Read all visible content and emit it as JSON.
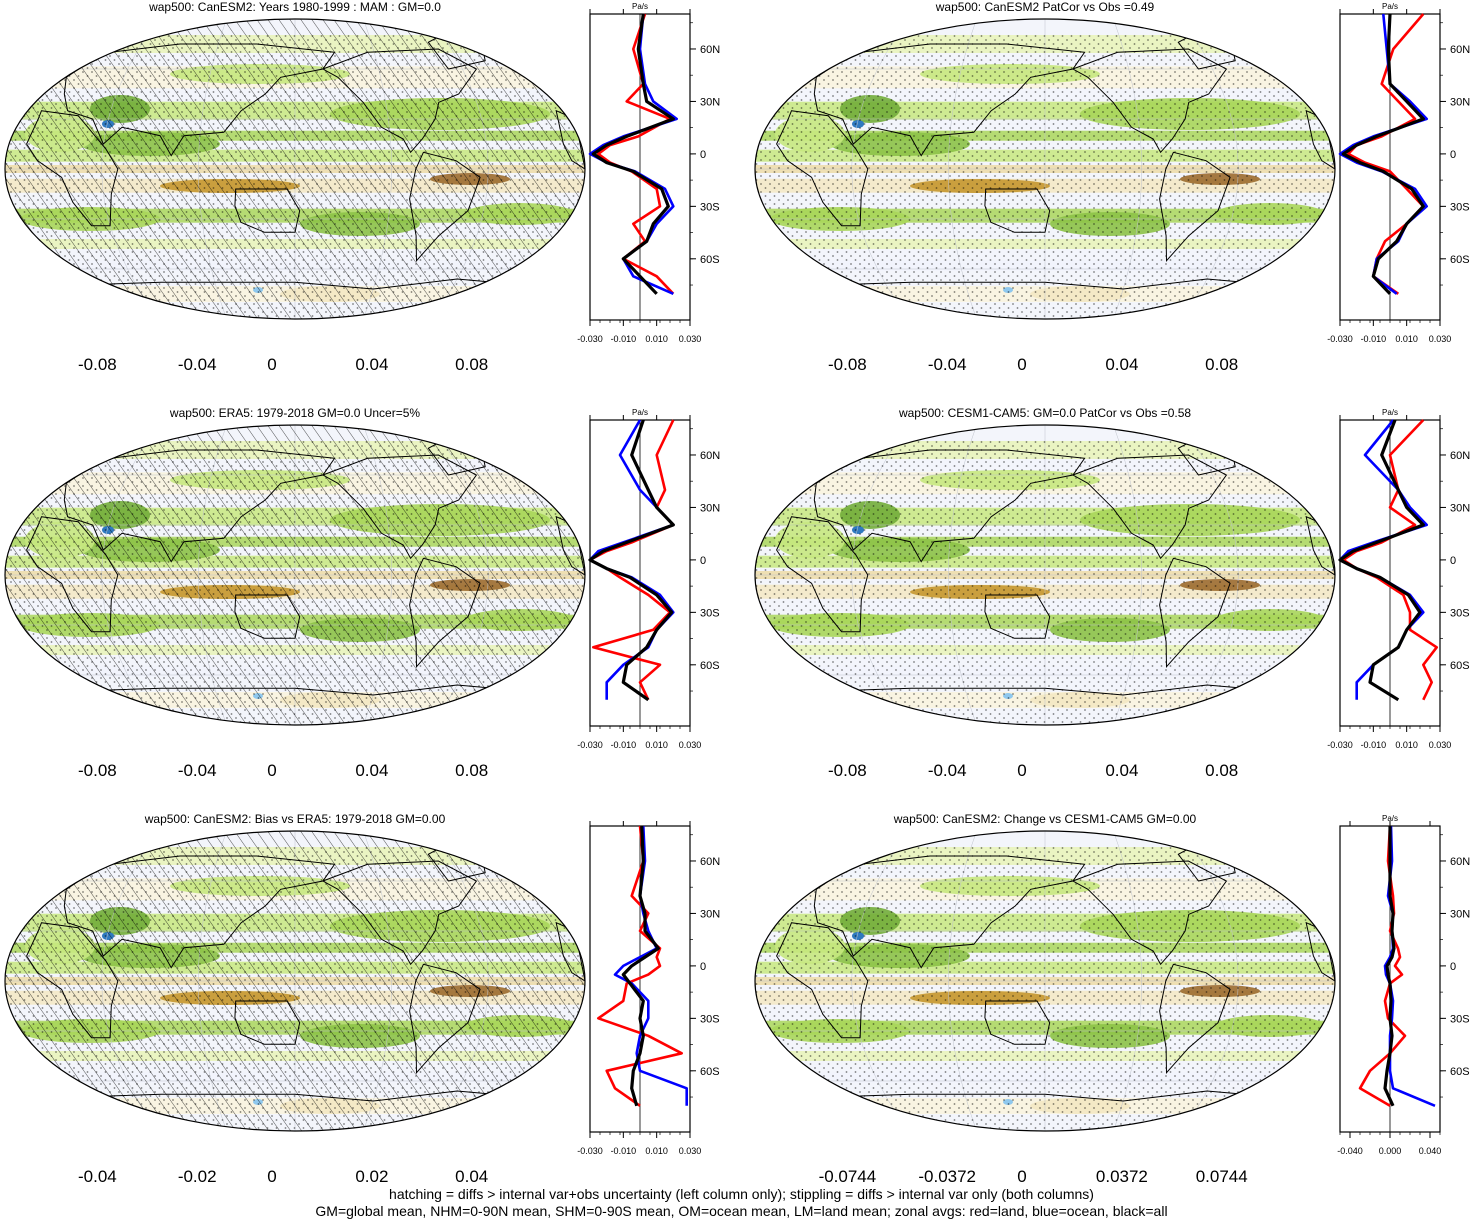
{
  "colors": {
    "palette": [
      "#543005",
      "#7a4a14",
      "#9c6b2d",
      "#c5972f",
      "#d8b150",
      "#e3c87e",
      "#ecdba6",
      "#f3e8c3",
      "#f9f3dd",
      "#ffffff",
      "#f1f3fb",
      "#e7f3b7",
      "#c7e87f",
      "#a9d65a",
      "#8cc247",
      "#72ad3a",
      "#589833",
      "#41812b",
      "#2e6e25",
      "#8fc8ee",
      "#2f79c0"
    ],
    "land": "#ff0000",
    "ocean": "#0000ff",
    "all": "#000000"
  },
  "panels": [
    {
      "title": "wap500: CanESM2: Years 1980-1999 : MAM : GM=0.0",
      "hatching": true,
      "profile": {
        "unit": "Pa/s",
        "xticks": [
          "-0.030",
          "-0.010",
          "0.010",
          "0.030"
        ],
        "yticks": [
          "60N",
          "30N",
          "0",
          "30S",
          "60S"
        ]
      },
      "colorbar": {
        "labels": [
          "-0.08",
          "-0.04",
          "0",
          "0.04",
          "0.08"
        ]
      }
    },
    {
      "title": "wap500: CanESM2 PatCor vs Obs =0.49",
      "hatching": false,
      "profile": {
        "unit": "Pa/s",
        "xticks": [
          "-0.030",
          "-0.010",
          "0.010",
          "0.030"
        ],
        "yticks": [
          "60N",
          "30N",
          "0",
          "30S",
          "60S"
        ]
      },
      "colorbar": {
        "labels": [
          "-0.08",
          "-0.04",
          "0",
          "0.04",
          "0.08"
        ]
      }
    },
    {
      "title": "wap500: ERA5: 1979-2018 GM=0.0 Uncer=5%",
      "hatching": true,
      "profile": {
        "unit": "Pa/s",
        "xticks": [
          "-0.030",
          "-0.010",
          "0.010",
          "0.030"
        ],
        "yticks": [
          "60N",
          "30N",
          "0",
          "30S",
          "60S"
        ]
      },
      "colorbar": {
        "labels": [
          "-0.08",
          "-0.04",
          "0",
          "0.04",
          "0.08"
        ]
      }
    },
    {
      "title": "wap500: CESM1-CAM5: GM=0.0 PatCor vs Obs =0.58",
      "hatching": false,
      "profile": {
        "unit": "Pa/s",
        "xticks": [
          "-0.030",
          "-0.010",
          "0.010",
          "0.030"
        ],
        "yticks": [
          "60N",
          "30N",
          "0",
          "30S",
          "60S"
        ]
      },
      "colorbar": {
        "labels": [
          "-0.08",
          "-0.04",
          "0",
          "0.04",
          "0.08"
        ]
      }
    },
    {
      "title": "wap500: CanESM2: Bias vs ERA5: 1979-2018 GM=0.00",
      "hatching": true,
      "profile": {
        "unit": "",
        "xticks": [
          "-0.030",
          "-0.010",
          "0.010",
          "0.030"
        ],
        "yticks": [
          "60N",
          "30N",
          "0",
          "30S",
          "60S"
        ]
      },
      "colorbar": {
        "labels": [
          "-0.04",
          "-0.02",
          "0",
          "0.02",
          "0.04"
        ]
      }
    },
    {
      "title": "wap500: CanESM2: Change vs CESM1-CAM5 GM=0.00",
      "hatching": false,
      "profile": {
        "unit": "Pa/s",
        "xticks": [
          "-0.040",
          "0.000",
          "0.040"
        ],
        "yticks": [
          "60N",
          "30N",
          "0",
          "30S",
          "60S"
        ]
      },
      "colorbar": {
        "labels": [
          "-0.0744",
          "-0.0372",
          "0",
          "0.0372",
          "0.0744"
        ]
      }
    }
  ],
  "footer": {
    "line1": "hatching = diffs > internal var+obs uncertainty (left column only); stippling = diffs > internal var only (both columns)",
    "line2": "GM=global mean, NHM=0-90N mean, SHM=0-90S mean, OM=ocean mean, LM=land mean; zonal avgs: red=land, blue=ocean, black=all"
  },
  "chart_data": [
    {
      "type": "heatmap",
      "title": "wap500: CanESM2: Years 1980-1999 : MAM : GM=0.0",
      "colorbar_range": [
        -0.1,
        0.1
      ],
      "profile": {
        "xlim": [
          -0.03,
          0.03
        ],
        "x_unit": "Pa/s",
        "lat": [
          80,
          60,
          40,
          30,
          20,
          10,
          5,
          0,
          -5,
          -10,
          -20,
          -30,
          -40,
          -50,
          -60,
          -70,
          -80
        ],
        "series": [
          {
            "name": "red=land",
            "values": [
              0.003,
              -0.004,
              0.002,
              -0.008,
              0.018,
              -0.001,
              -0.018,
              -0.025,
              -0.018,
              -0.005,
              0.01,
              0.012,
              -0.004,
              0.003,
              -0.01,
              0.01,
              0.02
            ]
          },
          {
            "name": "blue=ocean",
            "values": [
              0.002,
              0.0,
              0.003,
              0.008,
              0.022,
              -0.01,
              -0.022,
              -0.03,
              -0.02,
              -0.003,
              0.015,
              0.02,
              0.01,
              0.004,
              -0.01,
              -0.004,
              0.02
            ]
          },
          {
            "name": "black=all",
            "values": [
              0.002,
              -0.001,
              0.002,
              0.004,
              0.02,
              -0.008,
              -0.02,
              -0.028,
              -0.02,
              -0.004,
              0.013,
              0.017,
              0.008,
              0.004,
              -0.01,
              0.0,
              0.01
            ]
          }
        ]
      }
    },
    {
      "type": "heatmap",
      "title": "wap500: CanESM2 PatCor vs Obs =0.49",
      "colorbar_range": [
        -0.1,
        0.1
      ],
      "profile": {
        "xlim": [
          -0.03,
          0.03
        ],
        "x_unit": "Pa/s",
        "lat": [
          80,
          60,
          40,
          30,
          20,
          10,
          5,
          0,
          -5,
          -10,
          -20,
          -30,
          -40,
          -50,
          -60,
          -70,
          -80
        ],
        "series": [
          {
            "name": "red=land",
            "values": [
              0.02,
              0.002,
              -0.005,
              0.005,
              0.015,
              -0.005,
              -0.02,
              -0.025,
              -0.015,
              0.0,
              0.01,
              0.02,
              0.01,
              -0.003,
              -0.008,
              -0.01,
              0.005
            ]
          },
          {
            "name": "blue=ocean",
            "values": [
              -0.004,
              -0.002,
              0.0,
              0.012,
              0.022,
              -0.01,
              -0.022,
              -0.03,
              -0.02,
              -0.005,
              0.015,
              0.022,
              0.01,
              0.005,
              -0.008,
              -0.01,
              0.004
            ]
          },
          {
            "name": "black=all",
            "values": [
              0.0,
              -0.001,
              0.0,
              0.01,
              0.02,
              -0.008,
              -0.02,
              -0.028,
              -0.018,
              -0.004,
              0.013,
              0.02,
              0.01,
              0.004,
              -0.007,
              -0.01,
              0.0
            ]
          }
        ]
      }
    },
    {
      "type": "heatmap",
      "title": "wap500: ERA5: 1979-2018 GM=0.0 Uncer=5%",
      "colorbar_range": [
        -0.1,
        0.1
      ],
      "profile": {
        "xlim": [
          -0.03,
          0.03
        ],
        "x_unit": "Pa/s",
        "lat": [
          80,
          60,
          40,
          30,
          20,
          10,
          5,
          0,
          -5,
          -10,
          -20,
          -30,
          -40,
          -50,
          -60,
          -70,
          -80
        ],
        "series": [
          {
            "name": "red=land",
            "values": [
              0.02,
              0.01,
              0.015,
              0.01,
              0.02,
              -0.005,
              -0.02,
              -0.03,
              -0.02,
              -0.012,
              0.005,
              0.018,
              0.008,
              -0.028,
              0.012,
              0.0,
              0.005
            ]
          },
          {
            "name": "blue=ocean",
            "values": [
              0.0,
              -0.012,
              0.0,
              0.01,
              0.02,
              -0.01,
              -0.025,
              -0.03,
              -0.02,
              -0.005,
              0.012,
              0.02,
              0.01,
              0.005,
              -0.01,
              -0.02,
              -0.02
            ]
          },
          {
            "name": "black=all",
            "values": [
              0.002,
              -0.005,
              0.005,
              0.01,
              0.02,
              -0.008,
              -0.022,
              -0.03,
              -0.02,
              -0.006,
              0.01,
              0.019,
              0.01,
              0.004,
              -0.008,
              -0.01,
              0.005
            ]
          }
        ]
      }
    },
    {
      "type": "heatmap",
      "title": "wap500: CESM1-CAM5: GM=0.0 PatCor vs Obs =0.58",
      "colorbar_range": [
        -0.1,
        0.1
      ],
      "profile": {
        "xlim": [
          -0.03,
          0.03
        ],
        "x_unit": "Pa/s",
        "lat": [
          80,
          60,
          40,
          30,
          20,
          10,
          5,
          0,
          -5,
          -10,
          -20,
          -30,
          -40,
          -50,
          -60,
          -70,
          -80
        ],
        "series": [
          {
            "name": "red=land",
            "values": [
              0.02,
              0.0,
              0.005,
              0.0,
              0.015,
              -0.005,
              -0.02,
              -0.028,
              -0.02,
              -0.008,
              0.008,
              0.012,
              0.012,
              0.028,
              0.02,
              0.025,
              0.02
            ]
          },
          {
            "name": "blue=ocean",
            "values": [
              0.002,
              -0.015,
              0.005,
              0.012,
              0.022,
              -0.01,
              -0.025,
              -0.03,
              -0.02,
              -0.006,
              0.012,
              0.02,
              0.01,
              0.005,
              -0.01,
              -0.02,
              -0.02
            ]
          },
          {
            "name": "black=all",
            "values": [
              0.003,
              -0.005,
              0.005,
              0.01,
              0.02,
              -0.008,
              -0.022,
              -0.03,
              -0.02,
              -0.006,
              0.011,
              0.018,
              0.01,
              0.005,
              -0.01,
              -0.012,
              0.005
            ]
          }
        ]
      }
    },
    {
      "type": "heatmap",
      "title": "wap500: CanESM2: Bias vs ERA5: 1979-2018 GM=0.00",
      "colorbar_range": [
        -0.05,
        0.05
      ],
      "profile": {
        "xlim": [
          -0.03,
          0.03
        ],
        "lat": [
          80,
          60,
          40,
          30,
          20,
          10,
          5,
          0,
          -5,
          -10,
          -20,
          -30,
          -40,
          -50,
          -60,
          -70,
          -80
        ],
        "series": [
          {
            "name": "red=land",
            "values": [
              0.0,
              0.002,
              -0.005,
              0.005,
              0.0,
              0.012,
              0.01,
              0.012,
              0.005,
              -0.008,
              -0.01,
              -0.025,
              0.005,
              0.025,
              -0.02,
              -0.015,
              0.0
            ]
          },
          {
            "name": "blue=ocean",
            "values": [
              0.002,
              0.003,
              0.0,
              0.002,
              0.005,
              0.01,
              0.0,
              -0.01,
              -0.015,
              -0.005,
              0.005,
              0.005,
              0.0,
              -0.002,
              0.0,
              0.028,
              0.028
            ]
          },
          {
            "name": "black=all",
            "values": [
              0.001,
              0.002,
              0.0,
              0.003,
              0.003,
              0.011,
              0.003,
              -0.005,
              -0.01,
              -0.006,
              0.002,
              0.0,
              0.002,
              0.0,
              -0.004,
              -0.005,
              -0.002
            ]
          }
        ]
      }
    },
    {
      "type": "heatmap",
      "title": "wap500: CanESM2: Change vs CESM1-CAM5 GM=0.00",
      "colorbar_range": [
        -0.093,
        0.093
      ],
      "profile": {
        "xlim": [
          -0.05,
          0.05
        ],
        "lat": [
          80,
          60,
          40,
          30,
          20,
          10,
          5,
          0,
          -5,
          -10,
          -20,
          -30,
          -40,
          -50,
          -60,
          -70,
          -80
        ],
        "series": [
          {
            "name": "red=land",
            "values": [
              0.0,
              -0.002,
              0.003,
              0.004,
              0.0,
              0.008,
              0.01,
              0.005,
              0.012,
              0.0,
              -0.005,
              -0.002,
              0.015,
              0.0,
              -0.02,
              -0.03,
              0.0
            ]
          },
          {
            "name": "blue=ocean",
            "values": [
              0.001,
              0.002,
              -0.002,
              0.003,
              0.002,
              0.003,
              0.0,
              -0.005,
              -0.004,
              0.0,
              0.003,
              0.002,
              0.0,
              0.0,
              0.0,
              0.003,
              0.045
            ]
          },
          {
            "name": "black=all",
            "values": [
              0.0,
              0.0,
              0.0,
              0.003,
              0.002,
              0.004,
              0.002,
              -0.003,
              -0.002,
              0.0,
              0.001,
              0.0,
              0.002,
              0.0,
              -0.003,
              -0.005,
              0.003
            ]
          }
        ]
      }
    }
  ]
}
